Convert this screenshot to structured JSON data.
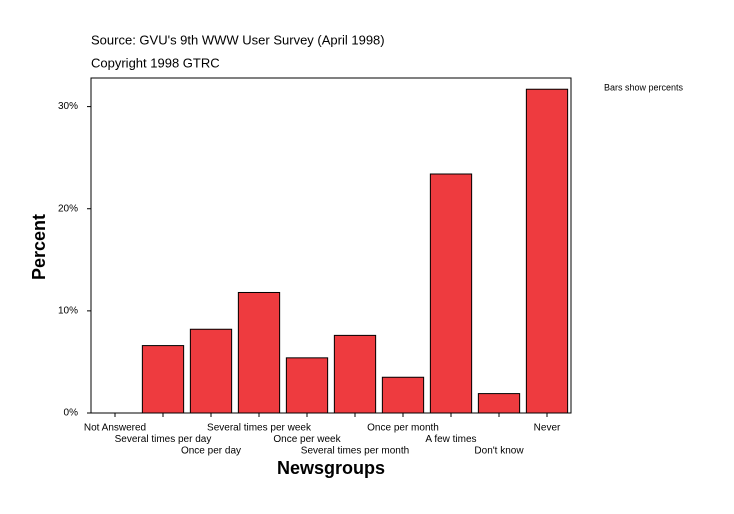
{
  "chart_data": {
    "type": "bar",
    "title": "Source: GVU's 9th WWW User Survey (April 1998)",
    "subtitle": "Copyright 1998 GTRC",
    "annotation": "Bars show percents",
    "x_label": "Newsgroups",
    "y_label": "Percent",
    "categories": [
      "Not Answered",
      "Several times per day",
      "Once per day",
      "Several times per week",
      "Once per week",
      "Several times per month",
      "Once per month",
      "A few times",
      "Don't know",
      "Never"
    ],
    "values": [
      0,
      6.6,
      8.2,
      11.8,
      5.4,
      7.6,
      3.5,
      23.4,
      1.9,
      31.7
    ],
    "color": "#ee3b3f",
    "ylim": [
      0,
      32.8
    ],
    "yticks": [
      {
        "value": 0,
        "label": "0%"
      },
      {
        "value": 10,
        "label": "10%"
      },
      {
        "value": 20,
        "label": "20%"
      },
      {
        "value": 30,
        "label": "30%"
      }
    ],
    "grid": false
  }
}
